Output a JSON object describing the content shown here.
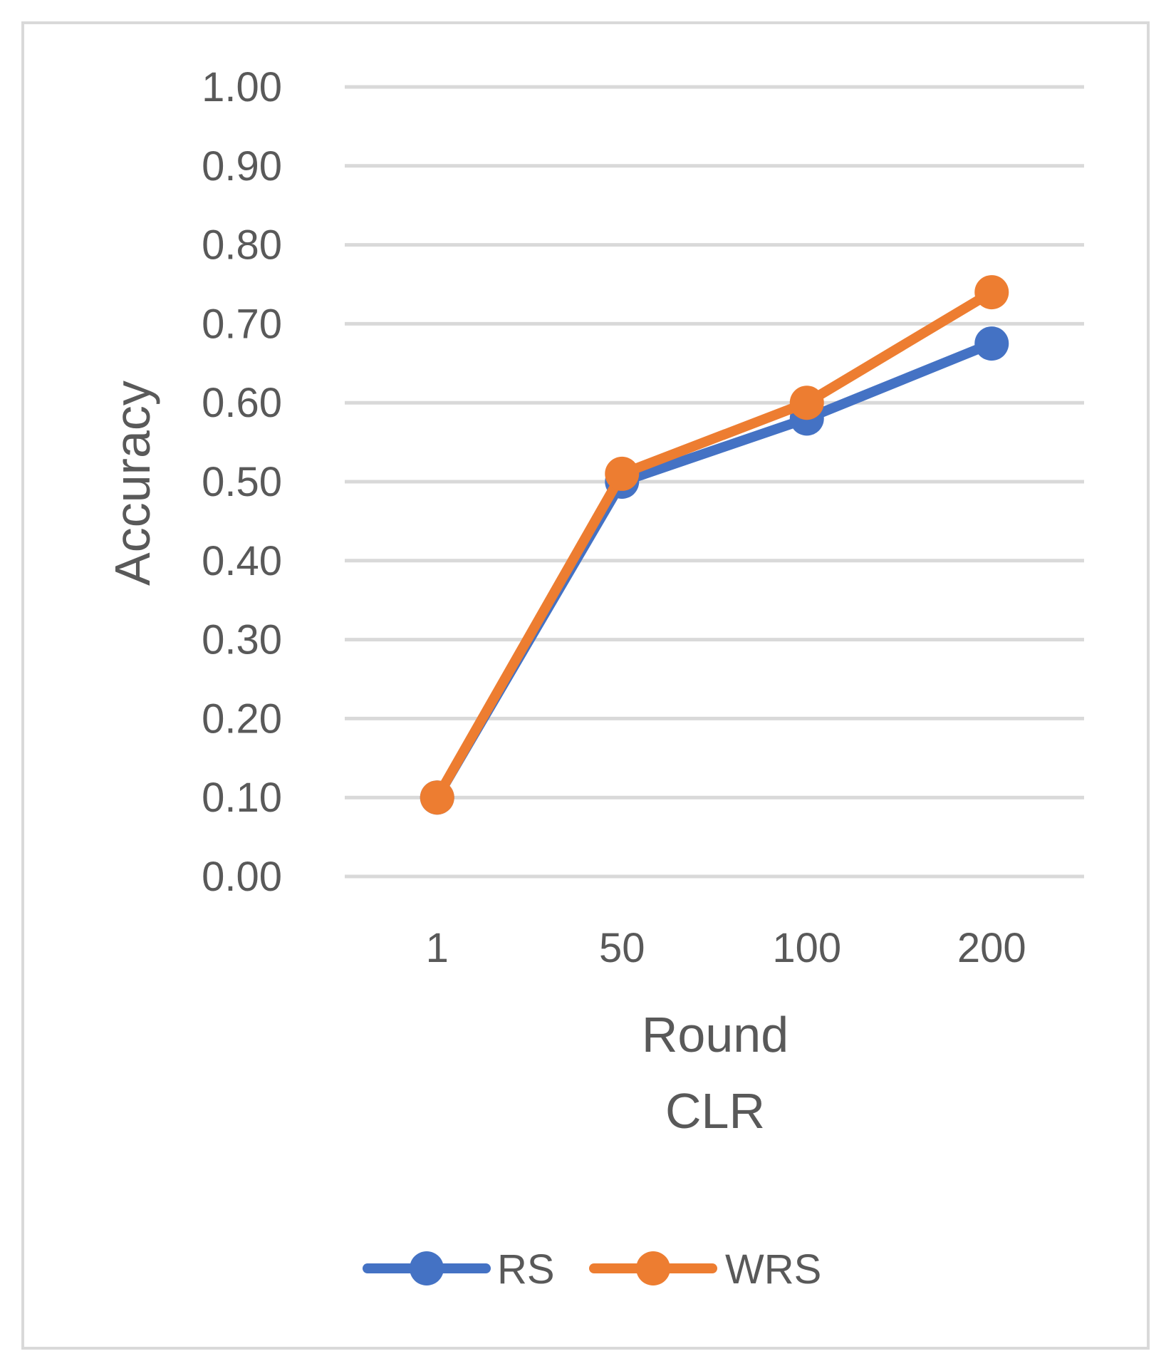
{
  "chart_data": {
    "type": "line",
    "categories": [
      "1",
      "50",
      "100",
      "200"
    ],
    "series": [
      {
        "name": "RS",
        "values": [
          0.1,
          0.5,
          0.58,
          0.675
        ],
        "color": "#4472C4"
      },
      {
        "name": "WRS",
        "values": [
          0.1,
          0.51,
          0.6,
          0.74
        ],
        "color": "#ED7D31"
      }
    ],
    "yticks": [
      "0.00",
      "0.10",
      "0.20",
      "0.30",
      "0.40",
      "0.50",
      "0.60",
      "0.70",
      "0.80",
      "0.90",
      "1.00"
    ],
    "ylim": [
      0,
      1
    ],
    "ylabel": "Accuracy",
    "xlabel": "Round",
    "subtitle": "CLR",
    "grid": true,
    "legend_position": "bottom"
  }
}
